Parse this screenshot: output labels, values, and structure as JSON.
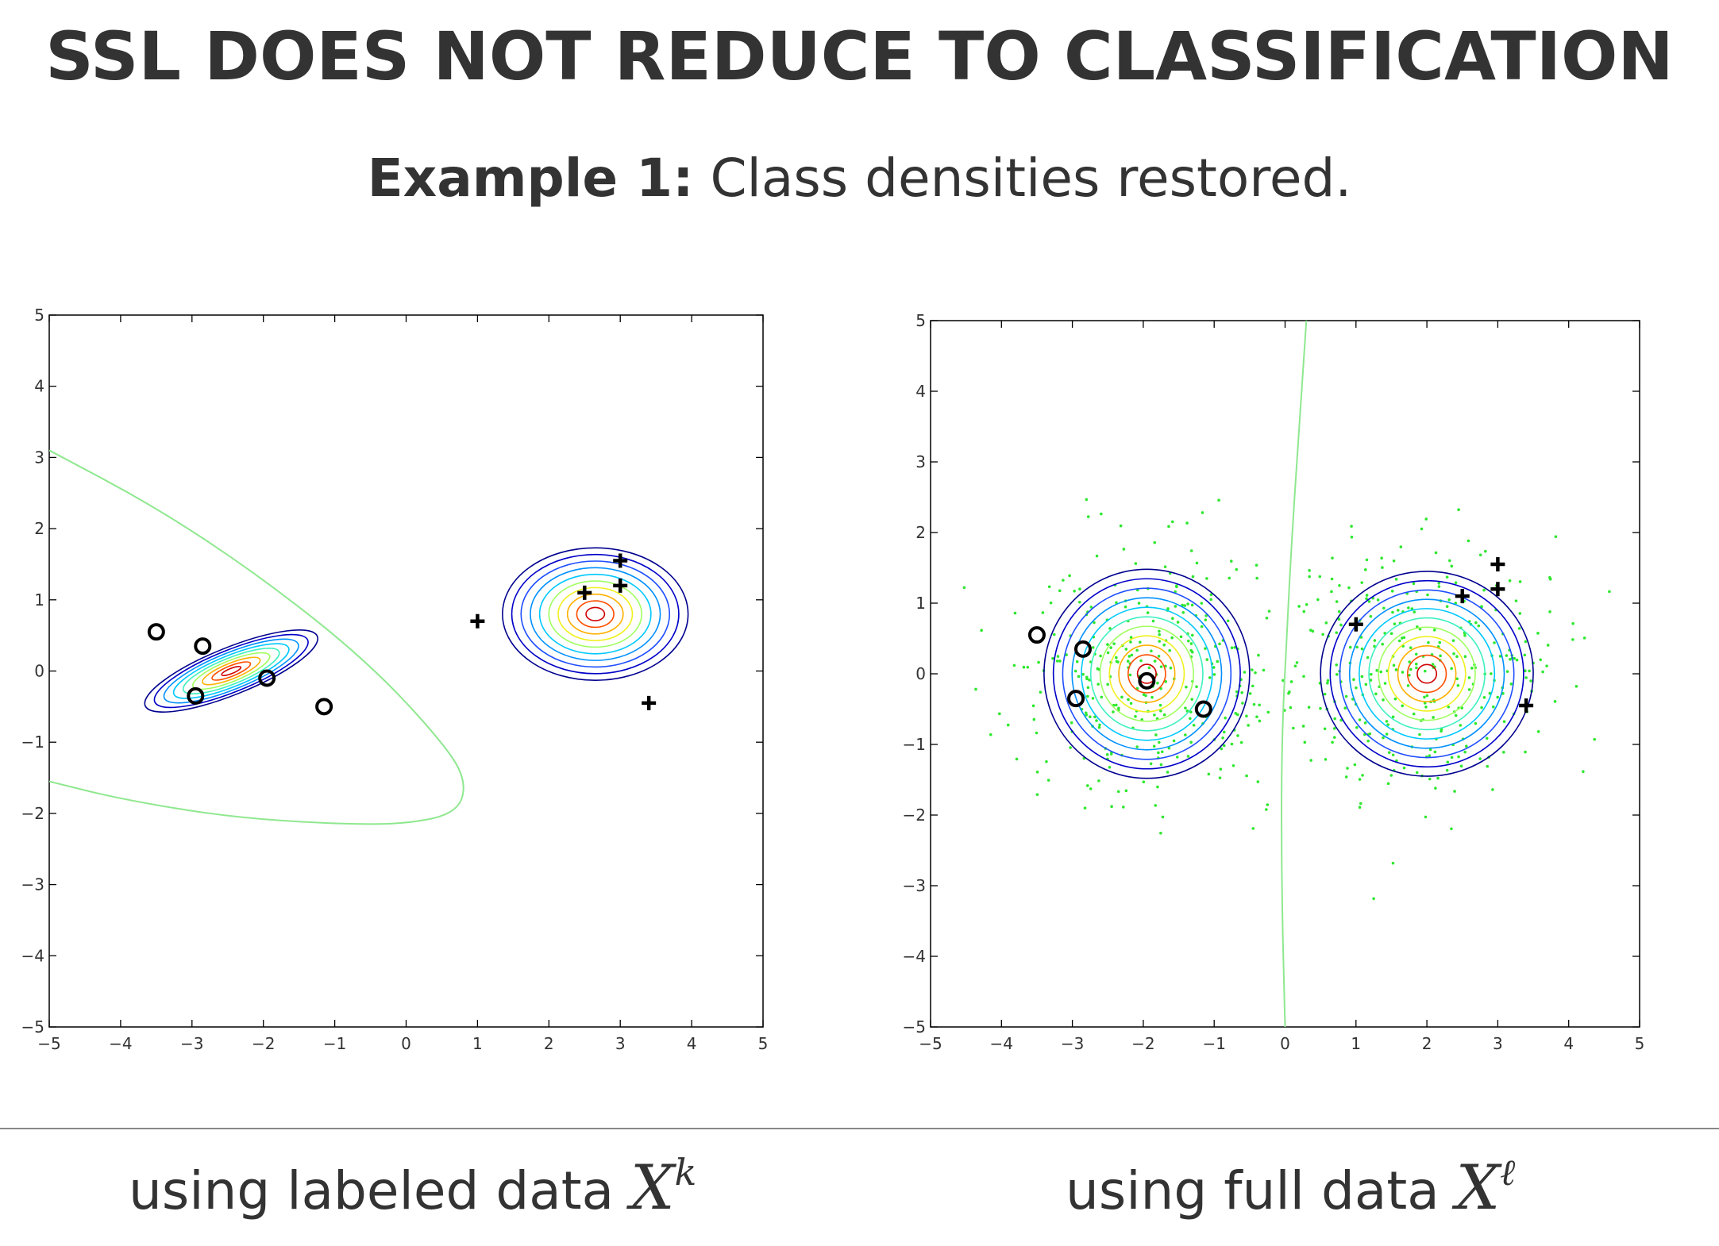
{
  "title": "SSL DOES NOT REDUCE TO CLASSIFICATION",
  "subtitle": {
    "bold": "Example 1:",
    "rest": " Class densities restored."
  },
  "captions": {
    "left": {
      "text": "using labeled data ",
      "var": "X",
      "sup": "k"
    },
    "right": {
      "text": "using full data ",
      "var": "X",
      "sup": "ℓ"
    }
  },
  "chart_data": [
    {
      "type": "scatter",
      "xlim": [
        -5,
        5
      ],
      "ylim": [
        -5,
        5
      ],
      "ticks": [
        -5,
        -4,
        -3,
        -2,
        -1,
        0,
        1,
        2,
        3,
        4,
        5
      ],
      "tick_labels": [
        "−5",
        "−4",
        "−3",
        "−2",
        "−1",
        "0",
        "1",
        "2",
        "3",
        "4",
        "5"
      ],
      "grid": false,
      "class_o": [
        [
          -3.5,
          0.55
        ],
        [
          -2.85,
          0.35
        ],
        [
          -1.95,
          -0.1
        ],
        [
          -2.95,
          -0.35
        ],
        [
          -1.15,
          -0.5
        ]
      ],
      "class_plus": [
        [
          1.0,
          0.7
        ],
        [
          2.5,
          1.1
        ],
        [
          3.0,
          1.55
        ],
        [
          3.0,
          1.2
        ],
        [
          3.4,
          -0.45
        ]
      ],
      "density_o": {
        "cx": -2.45,
        "cy": 0.0,
        "rx": 1.3,
        "ry": 0.33,
        "angle_deg": -22,
        "levels": 9
      },
      "density_plus": {
        "cx": 2.65,
        "cy": 0.8,
        "rx": 1.3,
        "ry": 0.93,
        "angle_deg": 0,
        "levels": 10
      },
      "decision_boundary": [
        [
          -5,
          3.1
        ],
        [
          -3.5,
          2.3
        ],
        [
          -2,
          1.3
        ],
        [
          -0.5,
          0.1
        ],
        [
          0.6,
          -1.1
        ],
        [
          0.85,
          -1.6
        ],
        [
          0.7,
          -2.0
        ],
        [
          0,
          -2.15
        ],
        [
          -1,
          -2.15
        ],
        [
          -2.5,
          -2.05
        ],
        [
          -4,
          -1.8
        ],
        [
          -5,
          -1.55
        ]
      ],
      "colors": {
        "boundary": "#8fe88f",
        "markers": "#000000"
      }
    },
    {
      "type": "scatter",
      "xlim": [
        -5,
        5
      ],
      "ylim": [
        -5,
        5
      ],
      "ticks": [
        -5,
        -4,
        -3,
        -2,
        -1,
        0,
        1,
        2,
        3,
        4,
        5
      ],
      "tick_labels": [
        "−5",
        "−4",
        "−3",
        "−2",
        "−1",
        "0",
        "1",
        "2",
        "3",
        "4",
        "5"
      ],
      "grid": false,
      "class_o": [
        [
          -3.5,
          0.55
        ],
        [
          -2.85,
          0.35
        ],
        [
          -1.95,
          -0.1
        ],
        [
          -2.95,
          -0.35
        ],
        [
          -1.15,
          -0.5
        ]
      ],
      "class_plus": [
        [
          1.0,
          0.7
        ],
        [
          2.5,
          1.1
        ],
        [
          3.0,
          1.55
        ],
        [
          3.0,
          1.2
        ],
        [
          3.4,
          -0.45
        ]
      ],
      "density_o": {
        "cx": -1.95,
        "cy": 0.0,
        "rx": 1.45,
        "ry": 1.48,
        "angle_deg": 0,
        "levels": 11
      },
      "density_plus": {
        "cx": 2.0,
        "cy": 0.0,
        "rx": 1.5,
        "ry": 1.45,
        "angle_deg": 0,
        "levels": 11
      },
      "decision_boundary": [
        [
          0.3,
          5
        ],
        [
          0.2,
          3.5
        ],
        [
          0.1,
          2
        ],
        [
          0.02,
          0.5
        ],
        [
          -0.05,
          -1
        ],
        [
          -0.05,
          -3
        ],
        [
          0.0,
          -5
        ]
      ],
      "unlabeled": {
        "clusters": [
          {
            "cx": -1.95,
            "cy": 0.0,
            "sd": 0.95,
            "n": 320
          },
          {
            "cx": 2.0,
            "cy": 0.0,
            "sd": 0.95,
            "n": 320
          }
        ]
      },
      "colors": {
        "boundary": "#8fe88f",
        "unlabeled": "#2ee82e",
        "markers": "#000000"
      }
    }
  ]
}
